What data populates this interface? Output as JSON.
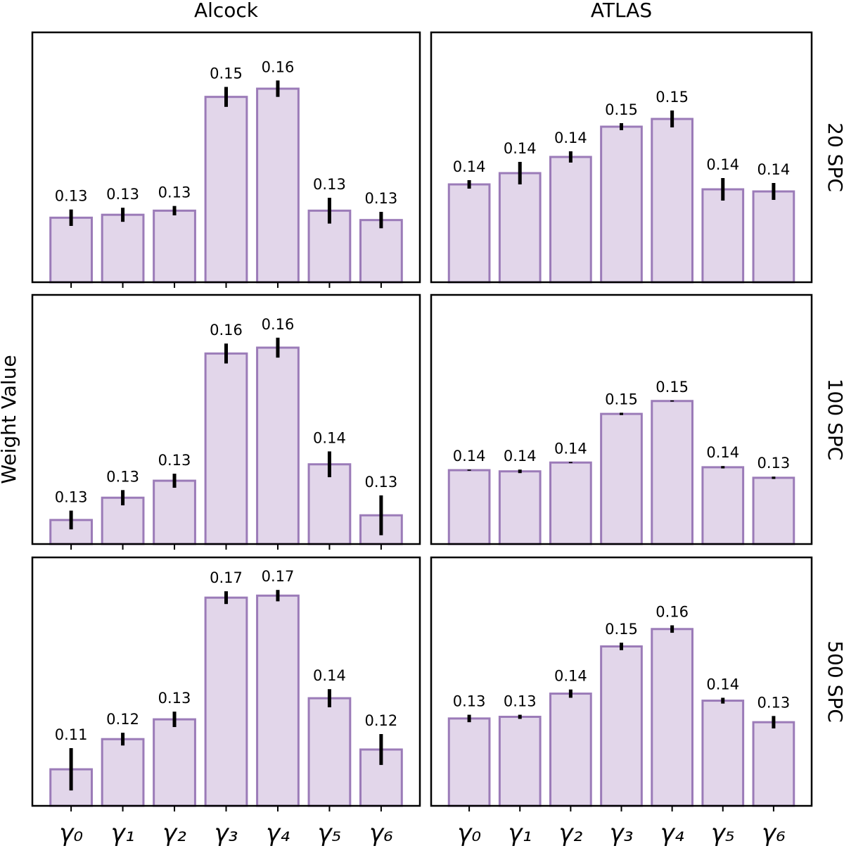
{
  "chart_data": [
    {
      "type": "bar",
      "title": "Alcock",
      "color": "#e2d6ea",
      "edgecolor": "#9b7bb8",
      "values": [
        0.1335,
        0.134,
        0.1347,
        0.1541,
        0.1555,
        0.1347,
        0.1331
      ],
      "value_labels": [
        "0.13",
        "0.13",
        "0.13",
        "0.15",
        "0.16",
        "0.13",
        "0.13"
      ],
      "errors": [
        0.0014,
        0.0012,
        0.0008,
        0.0017,
        0.0014,
        0.0022,
        0.0014
      ],
      "ylim": [
        0.1225,
        0.1651
      ]
    },
    {
      "type": "bar",
      "title": "ATLAS",
      "side_label": "20 SPC",
      "color": "#e2d6ea",
      "edgecolor": "#9b7bb8",
      "values": [
        0.1373,
        0.1389,
        0.1412,
        0.1455,
        0.1466,
        0.1366,
        0.1363
      ],
      "value_labels": [
        "0.14",
        "0.14",
        "0.14",
        "0.15",
        "0.15",
        "0.14",
        "0.14"
      ],
      "errors": [
        0.0006,
        0.0016,
        0.0008,
        0.0005,
        0.0012,
        0.0016,
        0.0012
      ],
      "ylim": [
        0.1234,
        0.1589
      ]
    },
    {
      "type": "bar",
      "ylabel": "Weight Value",
      "color": "#e2d6ea",
      "edgecolor": "#9b7bb8",
      "values": [
        0.1276,
        0.1314,
        0.1343,
        0.156,
        0.157,
        0.1371,
        0.1284
      ],
      "value_labels": [
        "0.13",
        "0.13",
        "0.13",
        "0.16",
        "0.16",
        "0.14",
        "0.13"
      ],
      "errors": [
        0.0016,
        0.0013,
        0.0012,
        0.0017,
        0.0017,
        0.0022,
        0.0034
      ],
      "ylim": [
        0.1235,
        0.166
      ]
    },
    {
      "type": "bar",
      "side_label": "100 SPC",
      "color": "#e2d6ea",
      "edgecolor": "#9b7bb8",
      "values": [
        0.1358,
        0.1356,
        0.1371,
        0.1454,
        0.1476,
        0.1363,
        0.1345
      ],
      "value_labels": [
        "0.14",
        "0.14",
        "0.14",
        "0.15",
        "0.15",
        "0.14",
        "0.13"
      ],
      "errors": [
        0.0001,
        0.0003,
        0.0001,
        0.0002,
        0.0001,
        0.0002,
        0.0002
      ],
      "ylim": [
        0.1232,
        0.1657
      ]
    },
    {
      "type": "bar",
      "categories": [
        "γ₀",
        "γ₁",
        "γ₂",
        "γ₃",
        "γ₄",
        "γ₅",
        "γ₆"
      ],
      "color": "#e2d6ea",
      "edgecolor": "#9b7bb8",
      "values": [
        0.1145,
        0.1235,
        0.1294,
        0.1657,
        0.1663,
        0.1357,
        0.1204
      ],
      "value_labels": [
        "0.11",
        "0.12",
        "0.13",
        "0.17",
        "0.17",
        "0.14",
        "0.12"
      ],
      "errors": [
        0.0063,
        0.0019,
        0.0023,
        0.0019,
        0.0017,
        0.0027,
        0.0046
      ],
      "ylim": [
        0.1036,
        0.1777
      ]
    },
    {
      "type": "bar",
      "side_label": "500 SPC",
      "categories": [
        "γ₀",
        "γ₁",
        "γ₂",
        "γ₃",
        "γ₄",
        "γ₅",
        "γ₆"
      ],
      "color": "#e2d6ea",
      "edgecolor": "#9b7bb8",
      "values": [
        0.1339,
        0.1343,
        0.1399,
        0.1513,
        0.1555,
        0.1382,
        0.133
      ],
      "value_labels": [
        "0.13",
        "0.13",
        "0.14",
        "0.15",
        "0.16",
        "0.14",
        "0.13"
      ],
      "errors": [
        0.0009,
        0.0005,
        0.001,
        0.0009,
        0.0009,
        0.0007,
        0.0015
      ],
      "ylim": [
        0.1128,
        0.1728
      ]
    }
  ]
}
